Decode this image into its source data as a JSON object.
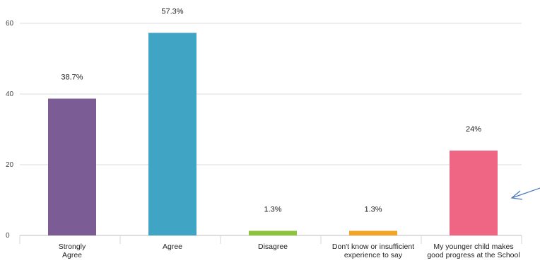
{
  "chart_data": {
    "type": "bar",
    "categories": [
      [
        "Strongly",
        "Agree"
      ],
      [
        "Agree"
      ],
      [
        "Disagree"
      ],
      [
        "Don't know or insufficient",
        "experience to say"
      ],
      [
        "My younger child makes",
        "good progress at the School"
      ]
    ],
    "values": [
      38.7,
      57.3,
      1.3,
      1.3,
      24
    ],
    "data_labels": [
      "38.7%",
      "57.3%",
      "1.3%",
      "1.3%",
      "24%"
    ],
    "colors": [
      "#7c5c94",
      "#40a4c4",
      "#8cc43c",
      "#f4a424",
      "#ef6584"
    ],
    "ylim": [
      0,
      60
    ],
    "yticks": [
      0,
      20,
      40,
      60
    ],
    "grid": true,
    "legend": "none",
    "annotation": "arrow pointing to last bar"
  }
}
